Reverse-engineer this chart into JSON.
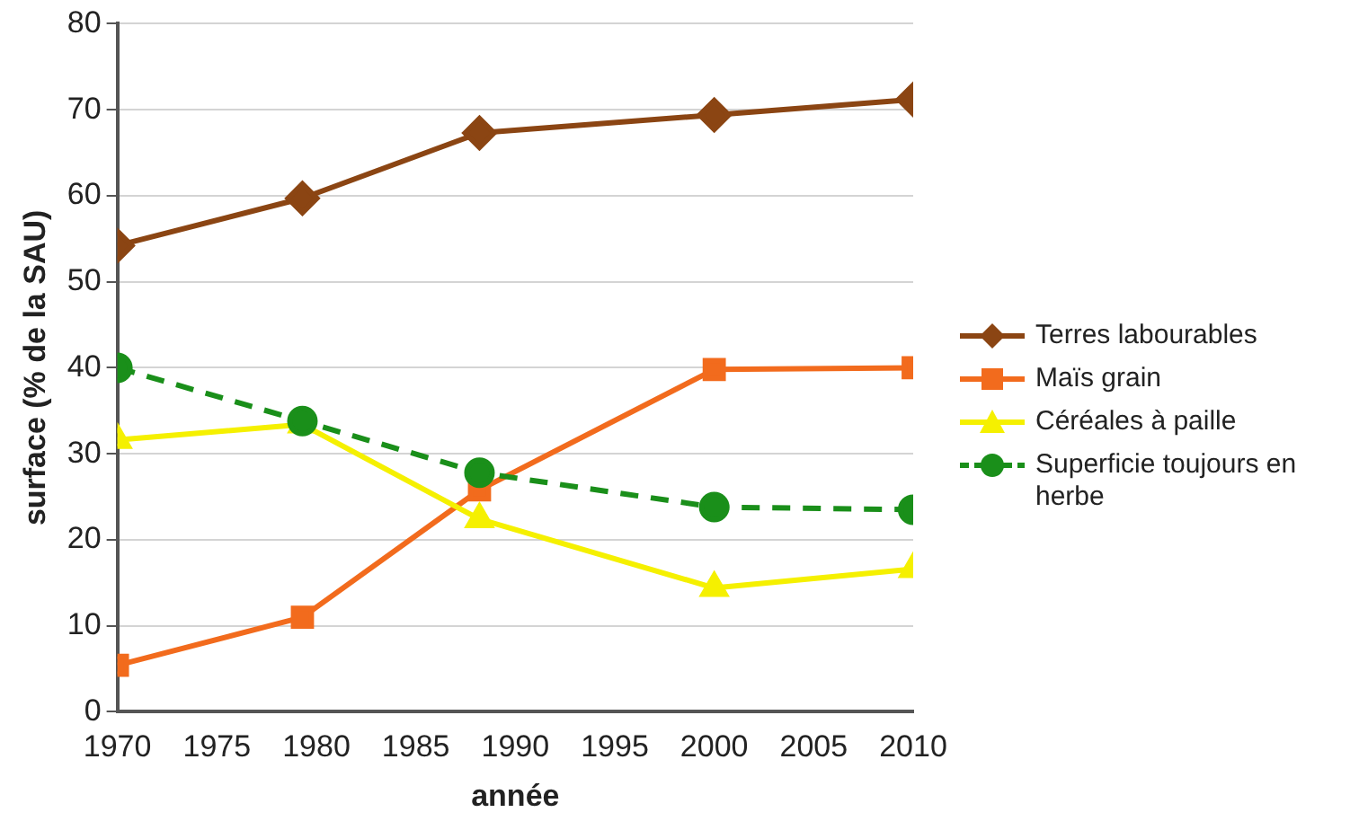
{
  "chart_data": {
    "type": "line",
    "xlabel": "année",
    "ylabel": "surface (% de la SAU)",
    "xlim": [
      1970,
      2010
    ],
    "xticks": [
      1970,
      1975,
      1980,
      1985,
      1990,
      1995,
      2000,
      2005,
      2010
    ],
    "ylim": [
      0,
      80
    ],
    "yticks": [
      0,
      10,
      20,
      30,
      40,
      50,
      60,
      70,
      80
    ],
    "grid": "y",
    "legend": "right",
    "x": [
      1970,
      1979.3,
      1988.2,
      2000,
      2010
    ],
    "series": [
      {
        "name": "Terres labourables",
        "color": "#8b4513",
        "marker": "diamond",
        "line_style": "solid",
        "values": [
          54.2,
          59.7,
          67.3,
          69.4,
          71.2
        ]
      },
      {
        "name": "Maïs grain",
        "color": "#f26b1d",
        "marker": "square",
        "line_style": "solid",
        "values": [
          5.4,
          11.0,
          25.8,
          39.8,
          40
        ]
      },
      {
        "name": "Céréales à paille",
        "color": "#f5f000",
        "marker": "triangle",
        "line_style": "solid",
        "values": [
          31.6,
          33.4,
          22.4,
          14.4,
          16.6
        ]
      },
      {
        "name": "Superficie toujours en herbe",
        "color": "#1a8f1a",
        "marker": "circle",
        "line_style": "dashed",
        "values": [
          40,
          33.8,
          27.8,
          23.8,
          23.5
        ]
      }
    ]
  }
}
